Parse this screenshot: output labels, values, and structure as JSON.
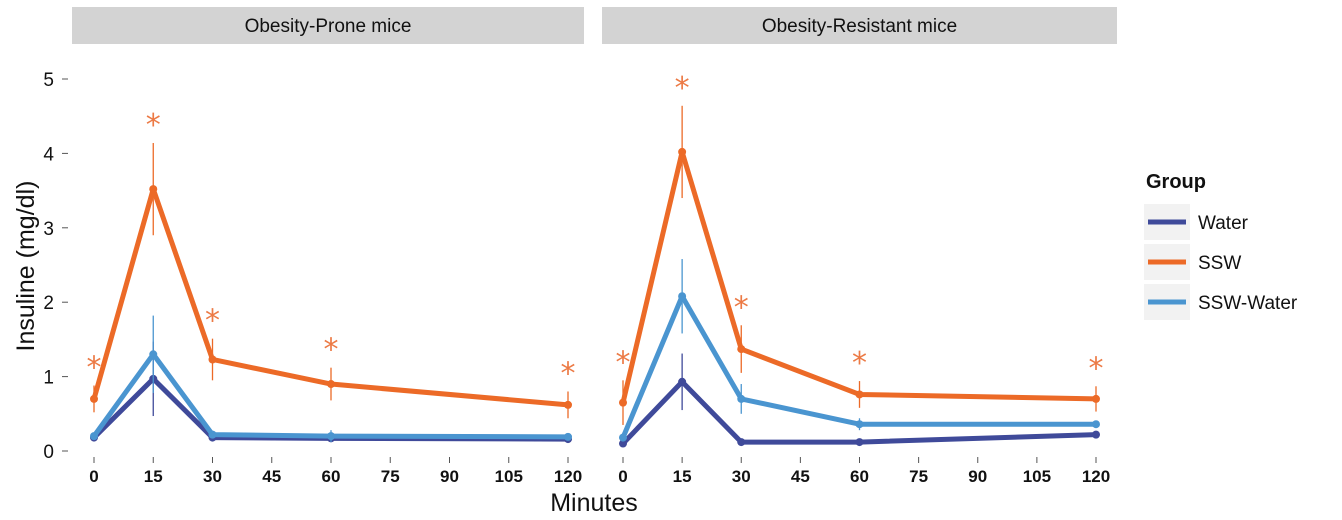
{
  "chart_data": {
    "type": "line",
    "xlabel": "Minutes",
    "ylabel": "Insuline (mg/dl)",
    "xlim": [
      0,
      120
    ],
    "ylim": [
      0,
      5
    ],
    "x_ticks": [
      "0",
      "15",
      "30",
      "45",
      "60",
      "75",
      "90",
      "105",
      "120"
    ],
    "y_ticks": [
      "0",
      "1",
      "2",
      "3",
      "4",
      "5"
    ],
    "grid": false,
    "legend": {
      "title": "Group",
      "position": "right",
      "items": [
        "Water",
        "SSW",
        "SSW-Water"
      ]
    },
    "colors": {
      "Water": "#3f4a9a",
      "SSW": "#ec6a27",
      "SSW-Water": "#4a95d0",
      "significance": "#ec7a45",
      "strip": "#d3d3d3"
    },
    "significance_marker": "*",
    "panels": [
      {
        "title": "Obesity-Prone mice",
        "x": [
          0,
          15,
          30,
          60,
          120
        ],
        "series": [
          {
            "name": "Water",
            "values": [
              0.18,
              0.97,
              0.18,
              0.17,
              0.16
            ],
            "error": [
              0.03,
              0.5,
              0.04,
              0.04,
              0.03
            ]
          },
          {
            "name": "SSW",
            "values": [
              0.7,
              3.52,
              1.23,
              0.9,
              0.62
            ],
            "error": [
              0.18,
              0.62,
              0.28,
              0.22,
              0.18
            ]
          },
          {
            "name": "SSW-Water",
            "values": [
              0.2,
              1.3,
              0.22,
              0.2,
              0.19
            ],
            "error": [
              0.03,
              0.52,
              0.05,
              0.08,
              0.05
            ]
          }
        ],
        "significant_x": [
          0,
          15,
          30,
          60,
          120
        ]
      },
      {
        "title": "Obesity-Resistant mice",
        "x": [
          0,
          15,
          30,
          60,
          120
        ],
        "series": [
          {
            "name": "Water",
            "values": [
              0.1,
              0.93,
              0.12,
              0.12,
              0.22
            ],
            "error": [
              0.03,
              0.38,
              0.03,
              0.03,
              0.05
            ]
          },
          {
            "name": "SSW",
            "values": [
              0.65,
              4.02,
              1.37,
              0.76,
              0.7
            ],
            "error": [
              0.3,
              0.62,
              0.32,
              0.18,
              0.17
            ]
          },
          {
            "name": "SSW-Water",
            "values": [
              0.18,
              2.08,
              0.7,
              0.36,
              0.36
            ],
            "error": [
              0.05,
              0.5,
              0.2,
              0.08,
              0.05
            ]
          }
        ],
        "significant_x": [
          0,
          15,
          30,
          60,
          120
        ]
      }
    ]
  }
}
